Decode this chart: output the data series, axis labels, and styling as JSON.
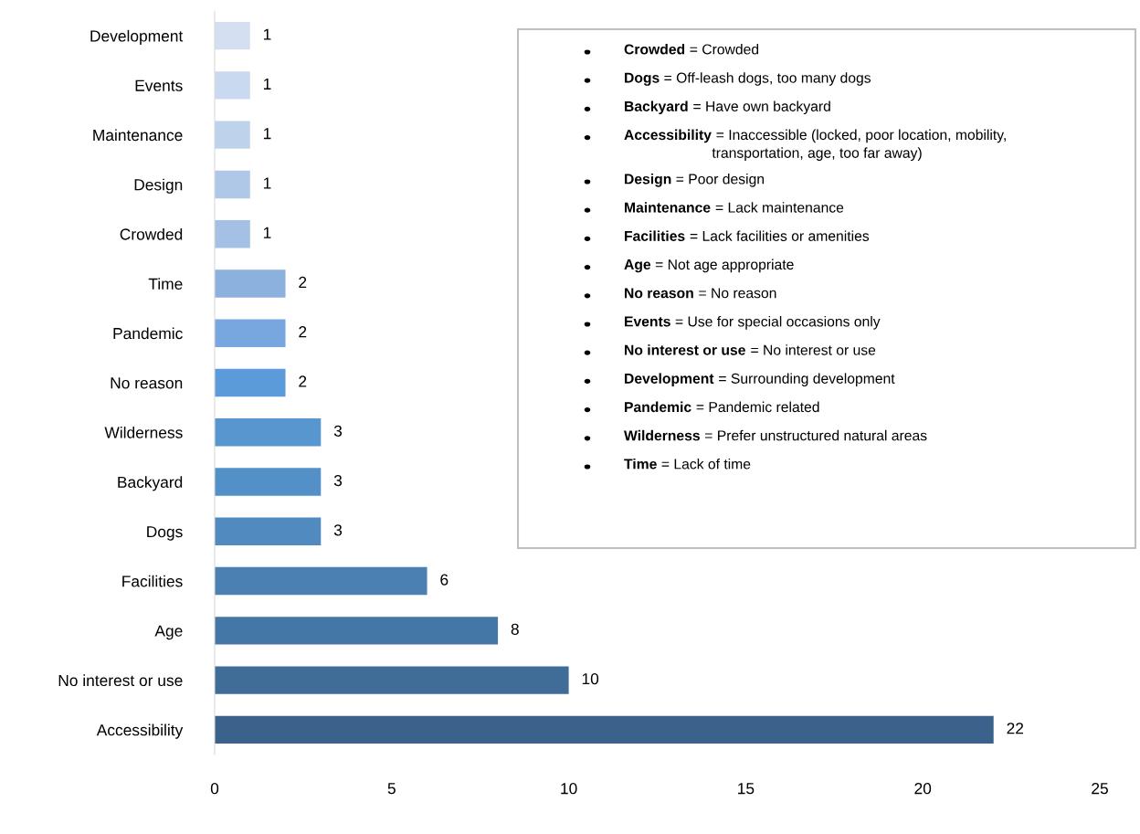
{
  "chart_data": {
    "type": "bar",
    "orientation": "horizontal",
    "categories": [
      "Development",
      "Events",
      "Maintenance",
      "Design",
      "Crowded",
      "Time",
      "Pandemic",
      "No reason",
      "Wilderness",
      "Backyard",
      "Dogs",
      "Facilities",
      "Age",
      "No interest or use",
      "Accessibility"
    ],
    "values": [
      1,
      1,
      1,
      1,
      1,
      2,
      2,
      2,
      3,
      3,
      3,
      6,
      8,
      10,
      22
    ],
    "colors": [
      "#d4e0f2",
      "#c9d9ef",
      "#bfd2ec",
      "#b0c8e8",
      "#a4c0e4",
      "#8db1df",
      "#78a6de",
      "#5b9bd9",
      "#5896d0",
      "#5490c8",
      "#508abf",
      "#4a80b2",
      "#4577a6",
      "#3f6d98",
      "#3a628a"
    ],
    "xlim": [
      0,
      25
    ],
    "xticks": [
      0,
      5,
      10,
      15,
      20,
      25
    ],
    "grid": false,
    "data_labels": true,
    "annotations": [
      "Crowded = Crowded",
      "Dogs = Off-leash dogs, too many dogs",
      "Backyard = Have own backyard",
      "Accessibility = Inaccessible (locked, poor location, mobility, transportation, age, too far away)",
      "Design = Poor design",
      "Maintenance = Lack maintenance",
      "Facilities = Lack facilities or amenities",
      "Age = Not age appropriate",
      "No reason = No reason",
      "Events = Use for special occasions only",
      "No interest or use = No interest or use",
      "Development = Surrounding development",
      "Pandemic = Pandemic related",
      "Wilderness = Prefer unstructured natural areas",
      "Time = Lack of time"
    ]
  }
}
